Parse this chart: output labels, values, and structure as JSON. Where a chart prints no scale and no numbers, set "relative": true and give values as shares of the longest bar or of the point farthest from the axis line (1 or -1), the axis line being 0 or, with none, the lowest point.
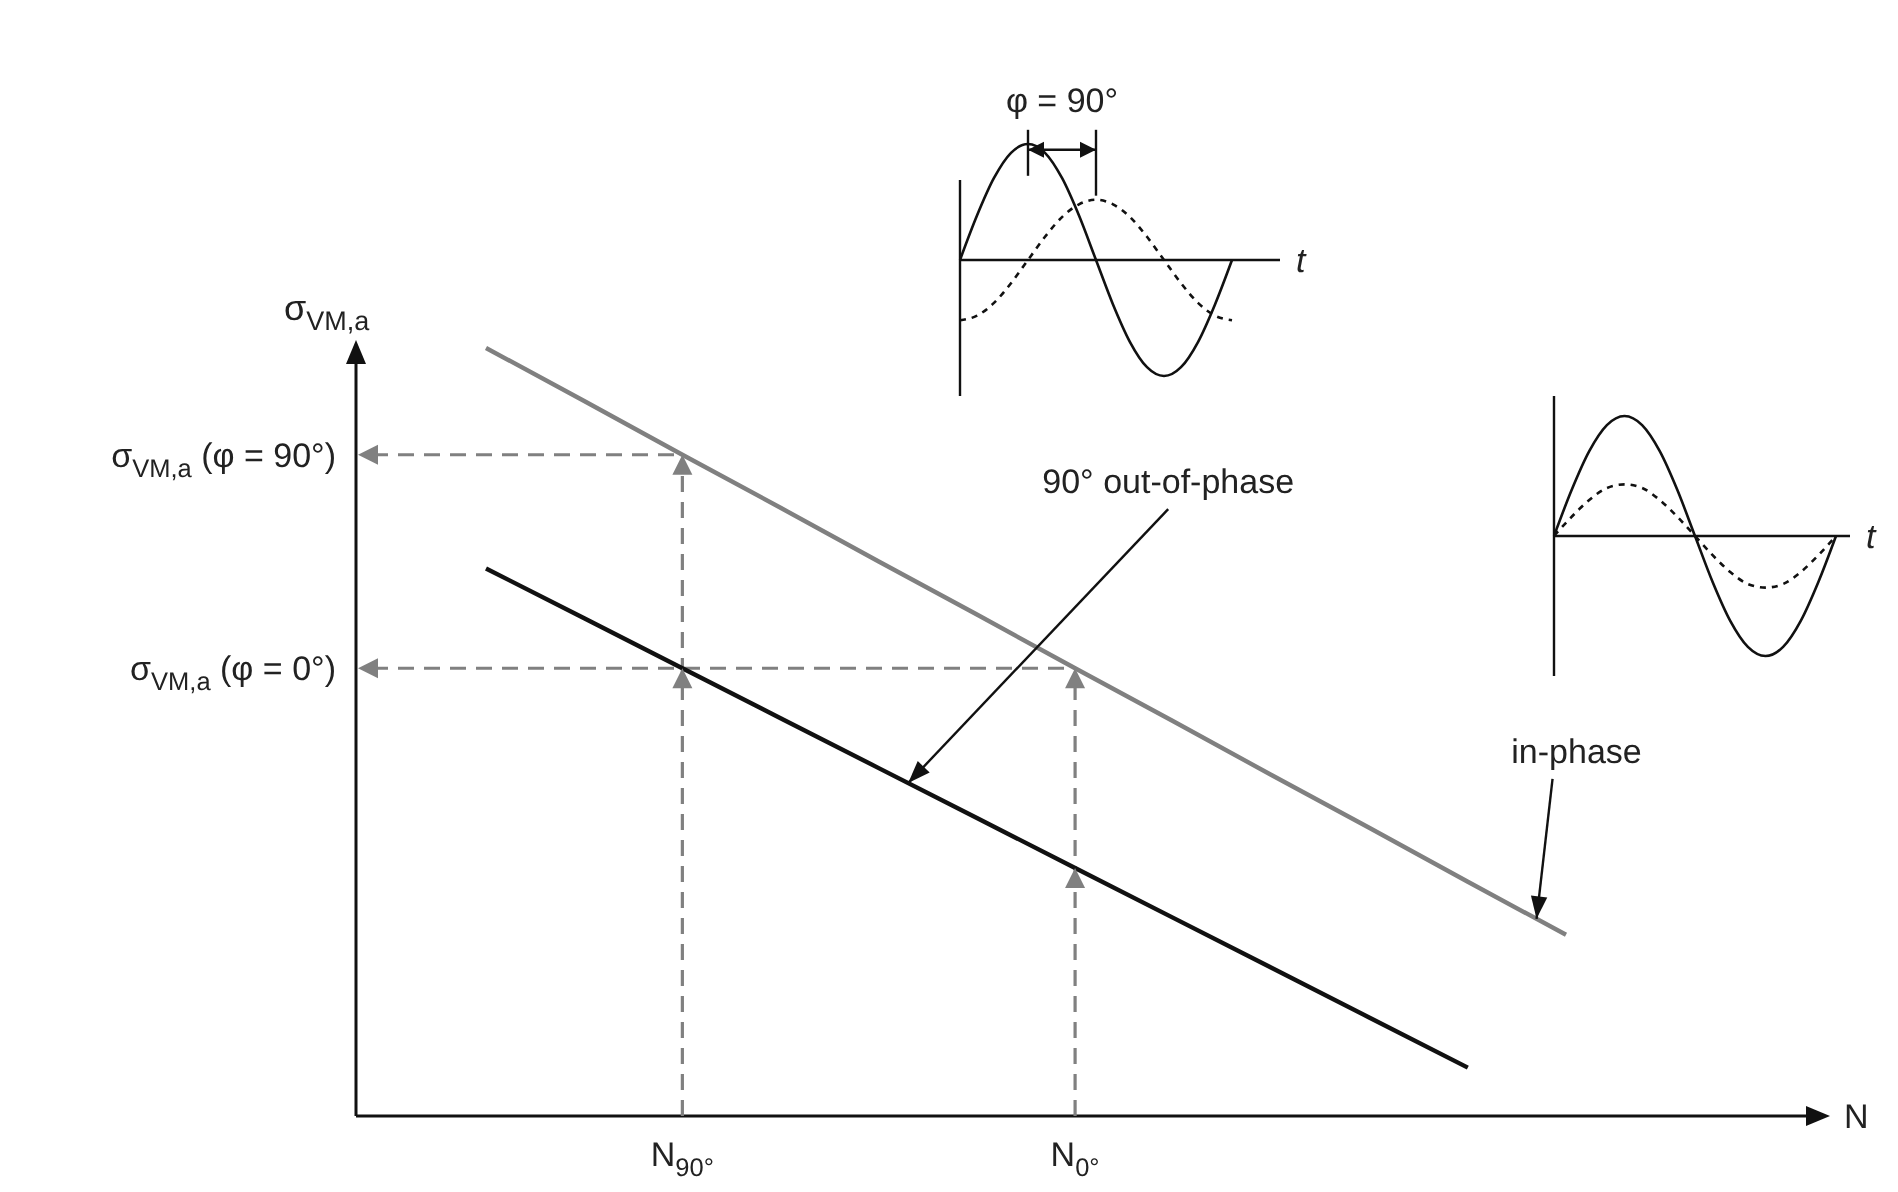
{
  "chart_data": [
    {
      "type": "line",
      "relative": true,
      "ylabel": "σ$_{VM,a}$",
      "categories": [
        null,
        null,
        "N$_{90°}$",
        null,
        null,
        null,
        "N$_{0°}$",
        null,
        null,
        null,
        null,
        null
      ],
      "series": [
        {
          "color": "#808080",
          "values": [
            1,
            0.931,
            0.861,
            0.792,
            0.722,
            0.653,
            0.583,
            0.514,
            0.444,
            0.375,
            0.305,
            0.236
          ]
        },
        {
          "color": "#111111",
          "values": [
            0.713,
            0.648,
            0.583,
            0.518,
            0.453,
            0.388,
            0.323,
            0.258,
            0.193,
            0.128,
            0.063,
            null
          ]
        }
      ],
      "ref_lines": [
        {
          "axis": "y",
          "value": 0.861,
          "color": "#808080",
          "line_style": "dashed"
        },
        {
          "axis": "y",
          "value": 0.583,
          "color": "#808080",
          "line_style": "dashed"
        },
        {
          "axis": "x",
          "value": "N$_{90°}$",
          "color": "#808080",
          "line_style": "dashed"
        },
        {
          "axis": "x",
          "value": "N$_{0°}$",
          "color": "#808080",
          "line_style": "dashed"
        }
      ],
      "annotations": [
        "σ$_{VM,a}$ (φ = 90°)",
        "σ$_{VM,a}$ (φ = 0°)",
        "90° out-of-phase",
        "in-phase",
        "N"
      ]
    },
    {
      "type": "line",
      "relative": true,
      "xlabel": "t",
      "categories": [
        null,
        null,
        null,
        null,
        null,
        null,
        null,
        null,
        null,
        null,
        null,
        null,
        null,
        null,
        null,
        null,
        null
      ],
      "series": [
        {
          "color": "#111111",
          "line_style": "solid",
          "values": [
            0,
            0.383,
            0.707,
            0.924,
            1,
            0.924,
            0.707,
            0.383,
            0,
            -0.383,
            -0.707,
            -0.924,
            -1,
            -0.924,
            -0.707,
            -0.383,
            0
          ]
        },
        {
          "color": "#111111",
          "line_style": "dotted",
          "values": [
            -0.52,
            -0.48,
            -0.37,
            -0.2,
            0,
            0.2,
            0.37,
            0.48,
            0.52,
            0.48,
            0.37,
            0.2,
            0,
            -0.2,
            -0.37,
            -0.48,
            -0.52
          ]
        }
      ],
      "annotations": [
        "φ = 90°"
      ]
    },
    {
      "type": "line",
      "relative": true,
      "xlabel": "t",
      "categories": [
        null,
        null,
        null,
        null,
        null,
        null,
        null,
        null,
        null,
        null,
        null,
        null,
        null,
        null,
        null,
        null,
        null
      ],
      "series": [
        {
          "color": "#111111",
          "line_style": "solid",
          "values": [
            0,
            0.383,
            0.707,
            0.924,
            1,
            0.924,
            0.707,
            0.383,
            0,
            -0.383,
            -0.707,
            -0.924,
            -1,
            -0.924,
            -0.707,
            -0.383,
            0
          ]
        },
        {
          "color": "#111111",
          "line_style": "dotted",
          "values": [
            0,
            0.16,
            0.3,
            0.4,
            0.43,
            0.4,
            0.3,
            0.16,
            0,
            -0.16,
            -0.3,
            -0.4,
            -0.43,
            -0.4,
            -0.3,
            -0.16,
            0
          ]
        }
      ]
    }
  ]
}
